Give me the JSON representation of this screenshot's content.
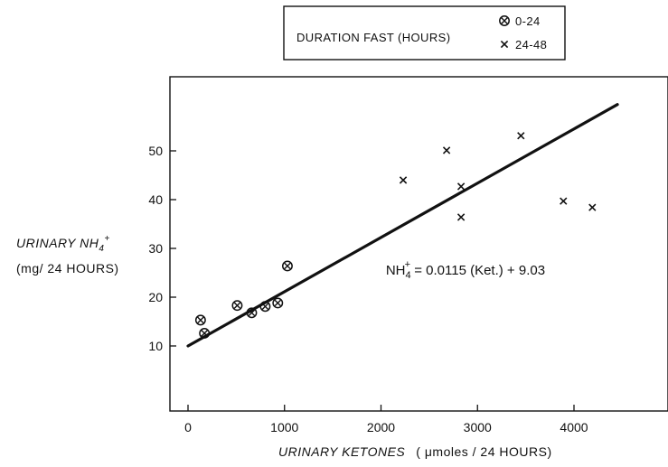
{
  "chart_data": {
    "type": "scatter",
    "title": "",
    "xlabel": {
      "main": "URINARY KETONES",
      "unit_prefix": "( μ",
      "unit_rest": "moles / 24 HOURS)"
    },
    "ylabel": {
      "line1": "URINARY NH",
      "sub": "4",
      "sup": "+",
      "line2": "(mg/ 24 HOURS)"
    },
    "xlim": [
      0,
      4950
    ],
    "ylim": [
      0,
      61
    ],
    "xticks": [
      0,
      1000,
      2000,
      3000,
      4000
    ],
    "yticks": [
      10,
      20,
      30,
      40,
      50
    ],
    "legend": {
      "position": "top-center",
      "title": "DURATION FAST (HOURS)",
      "entries": [
        {
          "marker": "circle-x",
          "label": "0-24"
        },
        {
          "marker": "x",
          "label": "24-48"
        }
      ]
    },
    "series": [
      {
        "marker": "circle-x",
        "points": [
          {
            "x": 130,
            "y": 15.3
          },
          {
            "x": 170,
            "y": 12.6
          },
          {
            "x": 510,
            "y": 18.3
          },
          {
            "x": 660,
            "y": 16.8
          },
          {
            "x": 800,
            "y": 18.1
          },
          {
            "x": 930,
            "y": 18.8
          },
          {
            "x": 1030,
            "y": 26.4
          }
        ]
      },
      {
        "marker": "x",
        "points": [
          {
            "x": 2230,
            "y": 44
          },
          {
            "x": 2680,
            "y": 50.1
          },
          {
            "x": 2830,
            "y": 42.7
          },
          {
            "x": 2830,
            "y": 36.4
          },
          {
            "x": 3450,
            "y": 53.1
          },
          {
            "x": 3890,
            "y": 39.7
          },
          {
            "x": 4190,
            "y": 38.4
          }
        ]
      }
    ],
    "regression": {
      "x": [
        0,
        4450
      ],
      "y": [
        10,
        59.5
      ]
    },
    "annotation": {
      "base": "NH",
      "sub": "4",
      "sup": "+",
      "rest": " = 0.0115 (Ket.) + 9.03",
      "anchor_x": 2050,
      "anchor_y": 24.6
    }
  }
}
